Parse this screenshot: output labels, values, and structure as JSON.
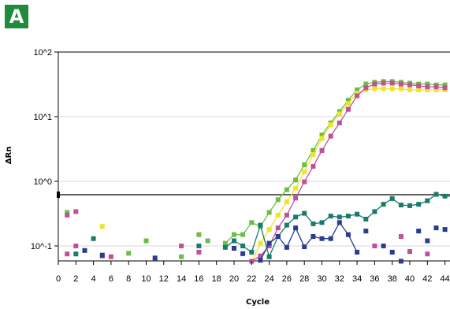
{
  "panel_label": "A",
  "chart_data": {
    "type": "scatter",
    "xlabel": "Cycle",
    "ylabel": "ΔRn",
    "xlim": [
      0,
      45
    ],
    "ylim": [
      0.055,
      100
    ],
    "y_scale": "log",
    "x_ticks": [
      0,
      2,
      4,
      6,
      8,
      10,
      12,
      14,
      16,
      18,
      20,
      22,
      24,
      26,
      28,
      30,
      32,
      34,
      36,
      38,
      40,
      42,
      44
    ],
    "x_tick_labels": [
      "0",
      "2",
      "4",
      "6",
      "8",
      "10",
      "12",
      "14",
      "16",
      "18",
      "20",
      "22",
      "24",
      "26",
      "28",
      "30",
      "32",
      "34",
      "36",
      "38",
      "40",
      "42",
      "44"
    ],
    "y_ticks": [
      0.1,
      1,
      10,
      100
    ],
    "y_tick_labels": [
      "10^-1",
      "10^0",
      "10^1",
      "10^2"
    ],
    "threshold": 0.62,
    "series": [
      {
        "color": "#6abe45",
        "points": [
          [
            19,
            0.11
          ],
          [
            20,
            0.15
          ],
          [
            21,
            0.15
          ],
          [
            22,
            0.23
          ],
          [
            23,
            0.2
          ],
          [
            24,
            0.33
          ],
          [
            25,
            0.52
          ],
          [
            26,
            0.74
          ],
          [
            27,
            1.05
          ],
          [
            28,
            1.8
          ],
          [
            29,
            3.0
          ],
          [
            30,
            5.2
          ],
          [
            31,
            8.0
          ],
          [
            32,
            12.0
          ],
          [
            33,
            18.0
          ],
          [
            34,
            26.0
          ],
          [
            35,
            32.0
          ],
          [
            36,
            34.0
          ],
          [
            37,
            35.0
          ],
          [
            38,
            35.0
          ],
          [
            39,
            34.0
          ],
          [
            40,
            33.0
          ],
          [
            41,
            32.0
          ],
          [
            42,
            32.0
          ],
          [
            43,
            31.0
          ],
          [
            44,
            31.0
          ],
          [
            1,
            0.33
          ],
          [
            8,
            0.077
          ],
          [
            10,
            0.12
          ],
          [
            14,
            0.068
          ],
          [
            16,
            0.15
          ],
          [
            17,
            0.12
          ]
        ],
        "connect_from_index": 0,
        "connect_count": 26
      },
      {
        "color": "#f0e428",
        "points": [
          [
            22,
            0.055
          ],
          [
            23,
            0.11
          ],
          [
            24,
            0.18
          ],
          [
            25,
            0.3
          ],
          [
            26,
            0.48
          ],
          [
            27,
            0.78
          ],
          [
            28,
            1.4
          ],
          [
            29,
            2.6
          ],
          [
            30,
            4.6
          ],
          [
            31,
            7.5
          ],
          [
            32,
            11.0
          ],
          [
            33,
            16.0
          ],
          [
            34,
            23.0
          ],
          [
            35,
            26.0
          ],
          [
            36,
            27.0
          ],
          [
            37,
            27.0
          ],
          [
            38,
            27.0
          ],
          [
            39,
            27.0
          ],
          [
            40,
            26.0
          ],
          [
            41,
            26.0
          ],
          [
            42,
            26.0
          ],
          [
            43,
            26.0
          ],
          [
            44,
            26.0
          ],
          [
            5,
            0.2
          ]
        ],
        "connect_from_index": 0,
        "connect_count": 23
      },
      {
        "color": "#c0509a",
        "points": [
          [
            22,
            0.058
          ],
          [
            23,
            0.07
          ],
          [
            24,
            0.1
          ],
          [
            25,
            0.19
          ],
          [
            26,
            0.3
          ],
          [
            27,
            0.55
          ],
          [
            28,
            0.98
          ],
          [
            29,
            1.7
          ],
          [
            30,
            3.0
          ],
          [
            31,
            5.0
          ],
          [
            32,
            8.0
          ],
          [
            33,
            13.0
          ],
          [
            34,
            21.0
          ],
          [
            35,
            28.0
          ],
          [
            36,
            32.0
          ],
          [
            37,
            33.0
          ],
          [
            38,
            33.0
          ],
          [
            39,
            32.0
          ],
          [
            40,
            31.0
          ],
          [
            41,
            30.0
          ],
          [
            42,
            29.0
          ],
          [
            43,
            29.0
          ],
          [
            44,
            28.0
          ],
          [
            1,
            0.3
          ],
          [
            2,
            0.34
          ],
          [
            1,
            0.075
          ],
          [
            2,
            0.1
          ],
          [
            5,
            0.07
          ],
          [
            6,
            0.068
          ],
          [
            14,
            0.1
          ],
          [
            16,
            0.08
          ],
          [
            36,
            0.1
          ],
          [
            39,
            0.14
          ],
          [
            40,
            0.082
          ],
          [
            42,
            0.075
          ]
        ],
        "connect_from_index": 0,
        "connect_count": 23
      },
      {
        "color": "#1a7a6e",
        "points": [
          [
            19,
            0.095
          ],
          [
            20,
            0.12
          ],
          [
            21,
            0.1
          ],
          [
            22,
            0.08
          ],
          [
            23,
            0.21
          ],
          [
            24,
            0.068
          ],
          [
            25,
            0.14
          ],
          [
            26,
            0.21
          ],
          [
            27,
            0.28
          ],
          [
            28,
            0.32
          ],
          [
            29,
            0.22
          ],
          [
            30,
            0.23
          ],
          [
            31,
            0.29
          ],
          [
            32,
            0.28
          ],
          [
            33,
            0.29
          ],
          [
            34,
            0.31
          ],
          [
            35,
            0.26
          ],
          [
            36,
            0.34
          ],
          [
            37,
            0.44
          ],
          [
            38,
            0.54
          ],
          [
            39,
            0.43
          ],
          [
            40,
            0.42
          ],
          [
            41,
            0.44
          ],
          [
            42,
            0.5
          ],
          [
            43,
            0.63
          ],
          [
            44,
            0.59
          ],
          [
            45,
            0.59
          ],
          [
            2,
            0.075
          ],
          [
            4,
            0.13
          ],
          [
            16,
            0.1
          ]
        ],
        "connect_from_index": 0,
        "connect_count": 27
      },
      {
        "color": "#2b3a93",
        "points": [
          [
            23,
            0.06
          ],
          [
            24,
            0.11
          ],
          [
            25,
            0.14
          ],
          [
            26,
            0.095
          ],
          [
            27,
            0.19
          ],
          [
            28,
            0.097
          ],
          [
            29,
            0.14
          ],
          [
            30,
            0.13
          ],
          [
            31,
            0.13
          ],
          [
            32,
            0.23
          ],
          [
            33,
            0.15
          ],
          [
            34,
            0.08
          ],
          [
            3,
            0.085
          ],
          [
            5,
            0.072
          ],
          [
            11,
            0.065
          ],
          [
            20,
            0.092
          ],
          [
            21,
            0.076
          ],
          [
            35,
            0.17
          ],
          [
            37,
            0.1
          ],
          [
            38,
            0.08
          ],
          [
            39,
            0.058
          ],
          [
            41,
            0.17
          ],
          [
            42,
            0.12
          ],
          [
            43,
            0.19
          ],
          [
            44,
            0.18
          ],
          [
            45,
            0.13
          ]
        ],
        "connect_from_index": 0,
        "connect_count": 12
      }
    ]
  }
}
